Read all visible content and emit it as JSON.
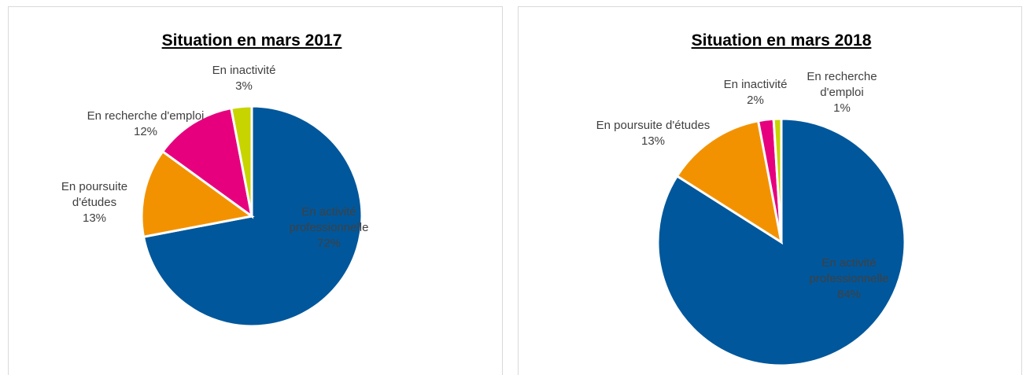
{
  "chart_data": [
    {
      "type": "pie",
      "title": "Situation en mars 2017",
      "categories": [
        "En activité professionnelle",
        "En poursuite d'études",
        "En recherche d'emploi",
        "En inactivité"
      ],
      "values": [
        72,
        13,
        12,
        3
      ],
      "value_labels": [
        "72%",
        "13%",
        "12%",
        "3%"
      ],
      "colors": [
        "#00579b",
        "#f39200",
        "#e6007e",
        "#c8d400"
      ]
    },
    {
      "type": "pie",
      "title": "Situation en mars 2018",
      "categories": [
        "En activité professionnelle",
        "En poursuite d'études",
        "En inactivité",
        "En recherche d'emploi"
      ],
      "values": [
        84,
        13,
        2,
        1
      ],
      "value_labels": [
        "84%",
        "13%",
        "2%",
        "1%"
      ],
      "colors": [
        "#00579b",
        "#f39200",
        "#e6007e",
        "#c8d400"
      ]
    }
  ]
}
